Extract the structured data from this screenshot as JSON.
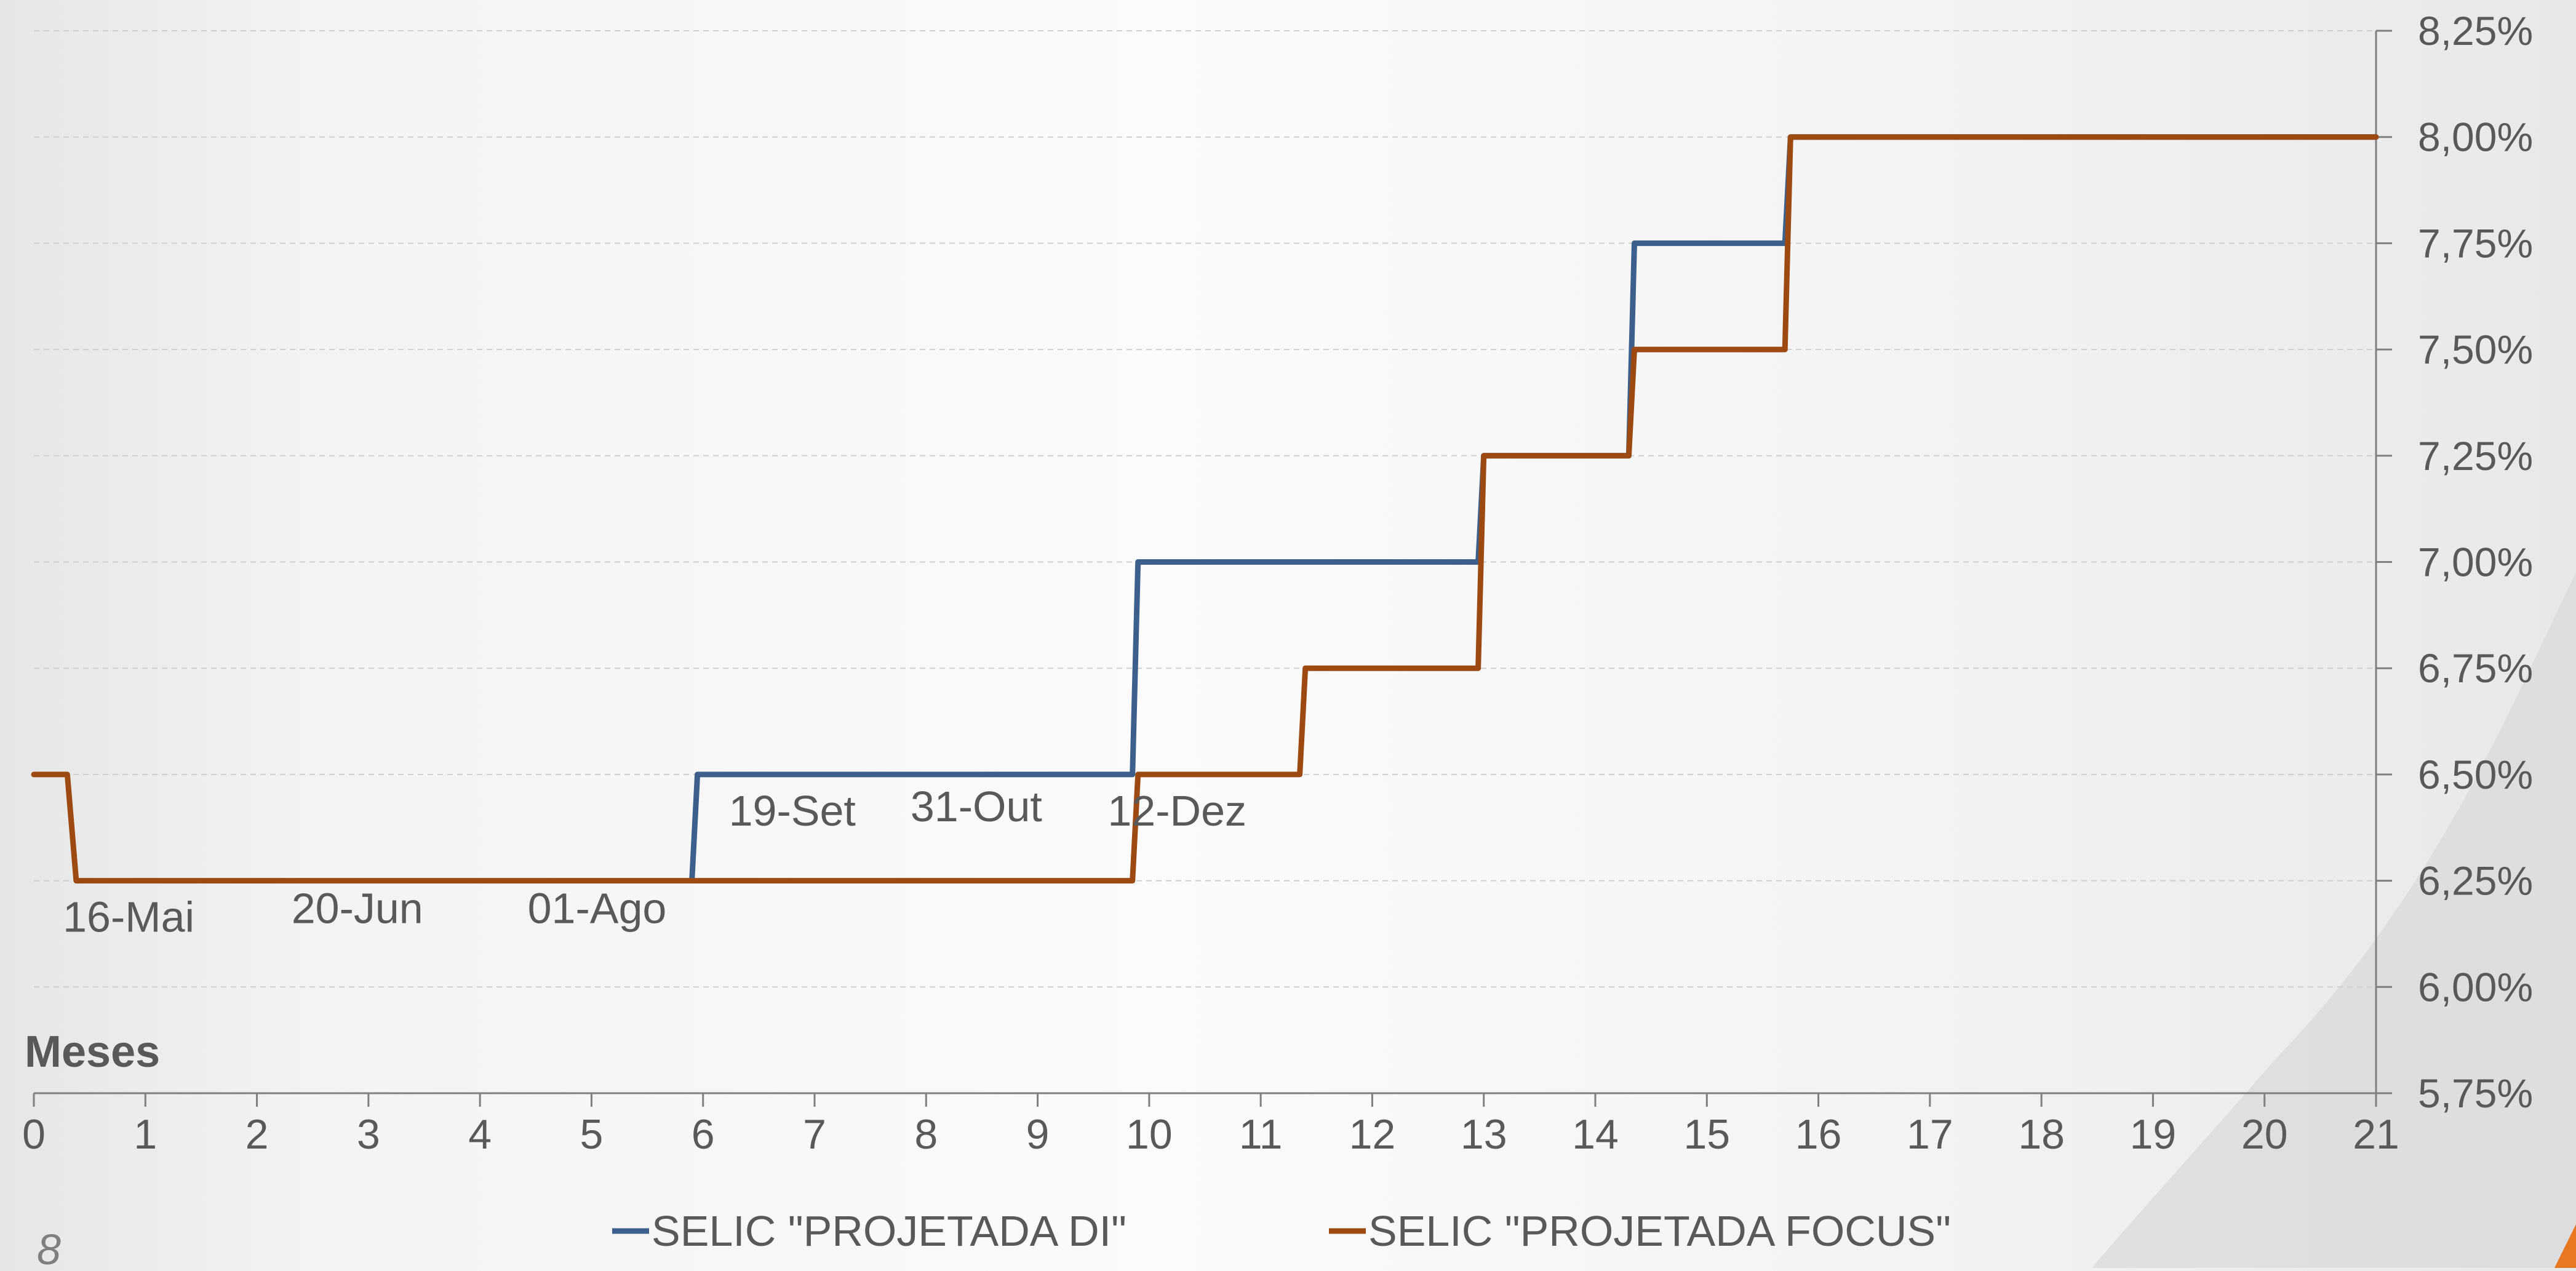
{
  "chart_data": {
    "type": "line",
    "step": true,
    "xlabel": "Meses",
    "xlim": [
      0,
      21
    ],
    "ylim": [
      5.75,
      8.25
    ],
    "x_ticks": [
      "0",
      "1",
      "2",
      "3",
      "4",
      "5",
      "6",
      "7",
      "8",
      "9",
      "10",
      "11",
      "12",
      "13",
      "14",
      "15",
      "16",
      "17",
      "18",
      "19",
      "20",
      "21"
    ],
    "y_ticks": [
      {
        "value": 5.75,
        "label": "5,75%"
      },
      {
        "value": 6.0,
        "label": "6,00%"
      },
      {
        "value": 6.25,
        "label": "6,25%"
      },
      {
        "value": 6.5,
        "label": "6,50%"
      },
      {
        "value": 6.75,
        "label": "6,75%"
      },
      {
        "value": 7.0,
        "label": "7,00%"
      },
      {
        "value": 7.25,
        "label": "7,25%"
      },
      {
        "value": 7.5,
        "label": "7,50%"
      },
      {
        "value": 7.75,
        "label": "7,75%"
      },
      {
        "value": 8.0,
        "label": "8,00%"
      },
      {
        "value": 8.25,
        "label": "8,25%"
      }
    ],
    "y_axis_side": "right",
    "grid": "horizontal dashed",
    "legend_position": "bottom",
    "series": [
      {
        "name": "SELIC \"PROJETADA DI\"",
        "color": "#3d5f8c",
        "points": [
          [
            5.9,
            6.25
          ],
          [
            5.95,
            6.5
          ],
          [
            9.85,
            6.5
          ],
          [
            9.9,
            7.0
          ],
          [
            12.95,
            7.0
          ],
          [
            13.0,
            7.25
          ],
          [
            14.3,
            7.25
          ],
          [
            14.35,
            7.75
          ],
          [
            15.7,
            7.75
          ],
          [
            15.75,
            8.0
          ],
          [
            21.0,
            8.0
          ]
        ]
      },
      {
        "name": "SELIC \"PROJETADA FOCUS\"",
        "color": "#9c4a12",
        "points": [
          [
            0.0,
            6.5
          ],
          [
            0.3,
            6.5
          ],
          [
            0.38,
            6.25
          ],
          [
            9.85,
            6.25
          ],
          [
            9.9,
            6.5
          ],
          [
            11.35,
            6.5
          ],
          [
            11.4,
            6.75
          ],
          [
            12.95,
            6.75
          ],
          [
            13.0,
            7.25
          ],
          [
            14.3,
            7.25
          ],
          [
            14.35,
            7.5
          ],
          [
            15.7,
            7.5
          ],
          [
            15.75,
            8.0
          ],
          [
            21.0,
            8.0
          ]
        ]
      }
    ],
    "annotations": [
      {
        "text": "16-Mai",
        "x": 0.85,
        "y": 6.13
      },
      {
        "text": "20-Jun",
        "x": 2.9,
        "y": 6.15
      },
      {
        "text": "01-Ago",
        "x": 5.05,
        "y": 6.15
      },
      {
        "text": "19-Set",
        "x": 6.8,
        "y": 6.38
      },
      {
        "text": "31-Out",
        "x": 8.45,
        "y": 6.39
      },
      {
        "text": "12-Dez",
        "x": 10.25,
        "y": 6.38
      }
    ]
  },
  "page": {
    "number": "8"
  }
}
